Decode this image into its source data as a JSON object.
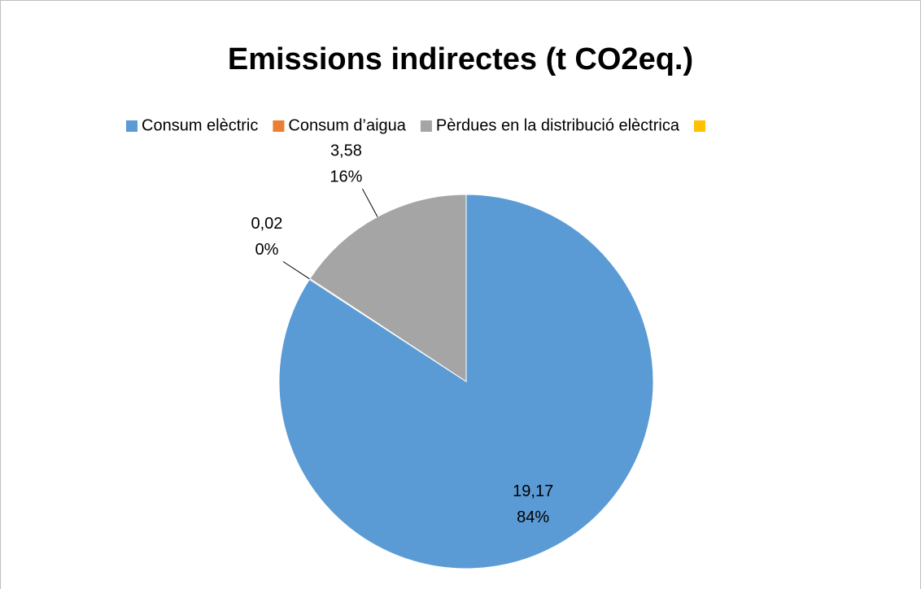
{
  "chart_data": {
    "type": "pie",
    "title": "Emissions indirectes (t CO2eq.)",
    "categories": [
      "Consum elèctric",
      "Consum d’aigua",
      "Pèrdues en la distribució elèctrica",
      null
    ],
    "values": [
      19.17,
      0.02,
      3.58,
      null
    ],
    "value_labels": [
      "19,17",
      "0,02",
      "3,58",
      null
    ],
    "percents": [
      84,
      0,
      16,
      null
    ],
    "percent_labels": [
      "84%",
      "0%",
      "16%",
      null
    ],
    "colors": [
      "#5b9bd5",
      "#ed7d31",
      "#a5a5a5",
      "#ffc000"
    ],
    "legend": "top"
  }
}
